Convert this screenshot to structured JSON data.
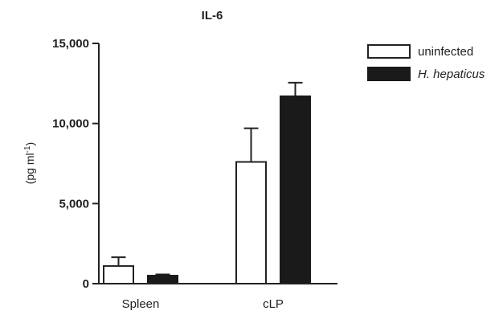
{
  "chart_data": {
    "type": "bar",
    "title": "IL-6",
    "ylabel": "(pg ml",
    "ylabel_superscript": "-1",
    "ylabel_suffix": ")",
    "xlabel": "",
    "ylim": [
      0,
      15000
    ],
    "yticks": [
      0,
      5000,
      10000,
      15000
    ],
    "ytick_labels": [
      "0",
      "5,000",
      "10,000",
      "15,000"
    ],
    "categories": [
      "Spleen",
      "cLP"
    ],
    "series": [
      {
        "name": "uninfected",
        "values": [
          1100,
          7600
        ],
        "errors": [
          550,
          2100
        ],
        "color": "#ffffff",
        "stroke": "#222222",
        "italic": false
      },
      {
        "name": "H. hepaticus",
        "values": [
          500,
          11700
        ],
        "errors": [
          80,
          850
        ],
        "color": "#1a1a1a",
        "stroke": "#1a1a1a",
        "italic": true
      }
    ],
    "legend_position": "top-right",
    "grid": false
  }
}
